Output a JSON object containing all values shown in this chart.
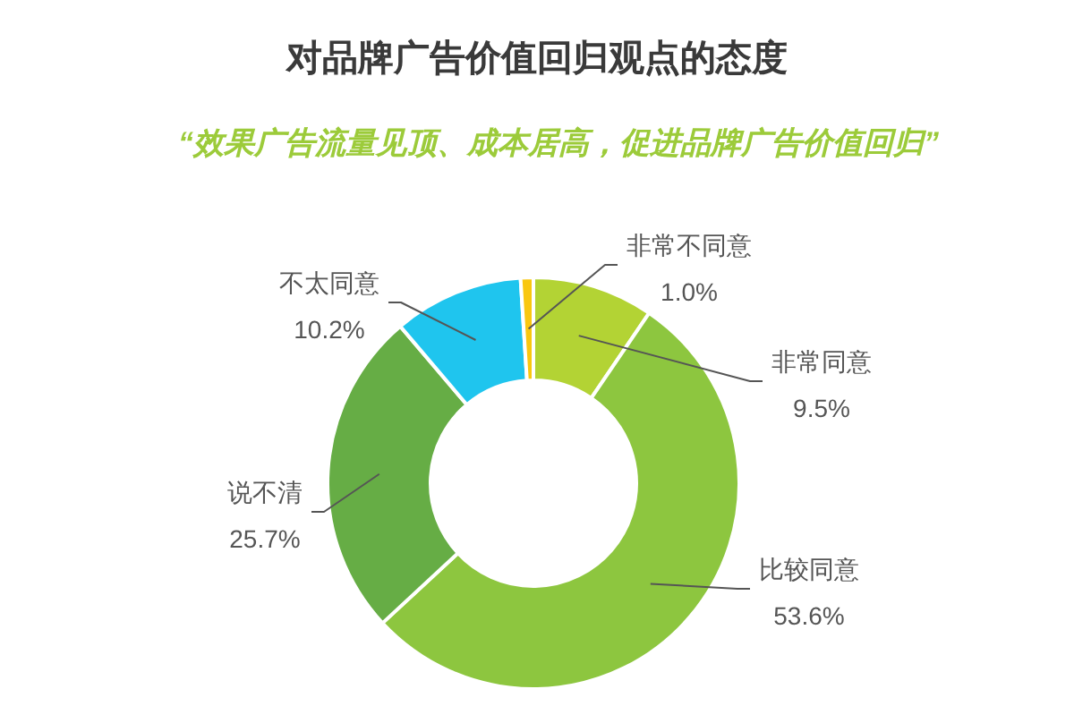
{
  "chart_data": {
    "type": "donut",
    "title": "对品牌广告价值回归观点的态度",
    "subtitle": "“效果广告流量见顶、成本居高，促进品牌广告价值回归”",
    "categories": [
      "非常同意",
      "比较同意",
      "说不清",
      "不太同意",
      "非常不同意"
    ],
    "values": [
      9.5,
      53.6,
      25.7,
      10.2,
      1.0
    ],
    "colors": [
      "#b3d334",
      "#8dc63f",
      "#66ad45",
      "#1fc5ee",
      "#f9c70f"
    ],
    "value_labels": [
      "9.5%",
      "53.6%",
      "25.7%",
      "10.2%",
      "1.0%"
    ]
  }
}
